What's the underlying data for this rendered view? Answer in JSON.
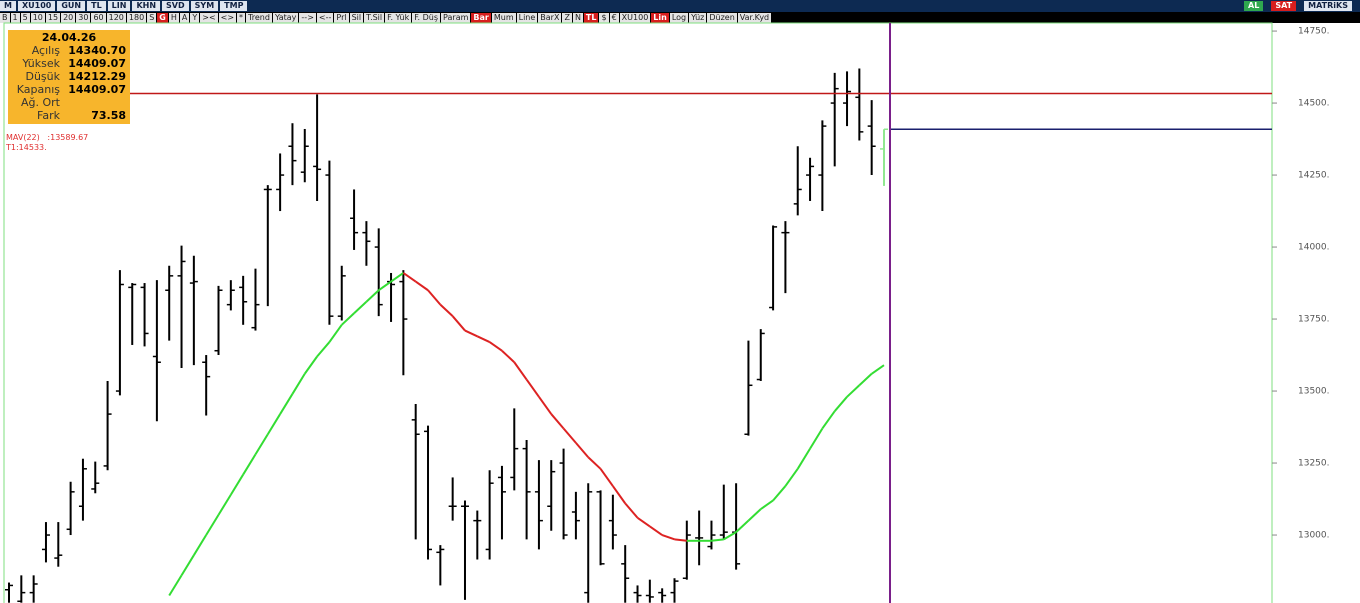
{
  "toolbar": {
    "row1_left": [
      "M",
      "XU100",
      "GUN",
      "TL",
      "LIN",
      "KHN",
      "SVD",
      "SYM",
      "TMP"
    ],
    "row1_right": [
      "AL",
      "SAT",
      "MATRiKS"
    ],
    "row2": [
      "B",
      "1",
      "5",
      "10",
      "15",
      "20",
      "30",
      "60",
      "120",
      "180",
      "S",
      "G",
      "H",
      "A",
      "Y",
      "><",
      "<>",
      "*",
      "Trend",
      "Yatay",
      "-->",
      "<--",
      "Prl",
      "Sil",
      "T.Sil",
      "F. Yük",
      "F. Düş",
      "Param",
      "Bar",
      "Mum",
      "Line",
      "BarX",
      "Z",
      "N",
      "TL",
      "$",
      "€",
      "XU100",
      "Lin",
      "Log",
      "Yüz",
      "Düzen",
      "Var.Kyd"
    ],
    "highlighted": [
      "G",
      "Bar",
      "TL",
      "Lin"
    ]
  },
  "info_box": {
    "date": "24.04.26",
    "rows": [
      [
        "Açılış",
        "14340.70"
      ],
      [
        "Yüksek",
        "14409.07"
      ],
      [
        "Düşük",
        "14212.29"
      ],
      [
        "Kapanış",
        "14409.07"
      ],
      [
        "Ağ. Ort"
      ],
      [
        "Fark",
        "73.58"
      ]
    ]
  },
  "chart_data": {
    "type": "ohlc",
    "ylim": [
      12764,
      14778
    ],
    "yticks": [
      {
        "value": 13000,
        "label": "13000."
      },
      {
        "value": 13250,
        "label": "13250."
      },
      {
        "value": 13500,
        "label": "13500."
      },
      {
        "value": 13750,
        "label": "13750."
      },
      {
        "value": 14000,
        "label": "14000."
      },
      {
        "value": 14250,
        "label": "14250."
      },
      {
        "value": 14500,
        "label": "14500."
      },
      {
        "value": 14750,
        "label": "14750."
      }
    ],
    "color": "#000000",
    "last_color": "#90e890",
    "open": [
      12810,
      12770,
      12800,
      12950,
      12920,
      13020,
      13100,
      13160,
      13240,
      13500,
      13860,
      13860,
      13620,
      13850,
      13900,
      13875,
      13600,
      13640,
      13800,
      13860,
      13720,
      14200,
      14200,
      14350,
      14260,
      14280,
      14250,
      13760,
      14100,
      14050,
      14000,
      13880,
      13880,
      13400,
      13360,
      12940,
      13100,
      13100,
      13050,
      12950,
      13200,
      13200,
      13300,
      13150,
      13100,
      13250,
      13080,
      12800,
      13150,
      13050,
      12900,
      12800,
      12790,
      12800,
      12800,
      12850,
      12990,
      12960,
      13000,
      13010,
      13350,
      13540,
      13790,
      14050,
      14150,
      14250,
      14250,
      14500,
      14500,
      14520,
      14420,
      14340.7
    ],
    "high": [
      12835,
      12860,
      12860,
      13045,
      13045,
      13185,
      13265,
      13255,
      13535,
      13920,
      13875,
      13875,
      13885,
      13935,
      14005,
      13970,
      13625,
      13865,
      13885,
      13900,
      13925,
      14215,
      14325,
      14430,
      14410,
      14530,
      14300,
      13935,
      14200,
      14090,
      14065,
      13910,
      13920,
      13455,
      13380,
      12965,
      13200,
      13120,
      13085,
      13225,
      13240,
      13440,
      13330,
      13260,
      13260,
      13300,
      13150,
      13180,
      13155,
      13140,
      12965,
      12825,
      12845,
      12815,
      12850,
      13050,
      13085,
      13050,
      13175,
      13180,
      13675,
      13715,
      14075,
      14090,
      14350,
      14310,
      14440,
      14605,
      14610,
      14620,
      14510,
      14409.07
    ],
    "low": [
      12765,
      12765,
      12765,
      12905,
      12890,
      13000,
      13050,
      13145,
      13225,
      13485,
      13660,
      13655,
      13395,
      13675,
      13580,
      13590,
      13415,
      13625,
      13780,
      13730,
      13710,
      13795,
      14125,
      14215,
      14225,
      14160,
      13730,
      13745,
      13990,
      13935,
      13760,
      13740,
      13555,
      12985,
      12915,
      12825,
      13050,
      12775,
      12915,
      12915,
      12985,
      13155,
      12985,
      12950,
      13015,
      12985,
      12985,
      12765,
      12895,
      12950,
      12765,
      12765,
      12765,
      12765,
      12765,
      12845,
      12895,
      12950,
      12985,
      12880,
      13345,
      13535,
      13780,
      13840,
      14110,
      14160,
      14125,
      14280,
      14420,
      14370,
      14250,
      14212.29
    ],
    "close": [
      12825,
      12800,
      12830,
      13000,
      12930,
      13150,
      13230,
      13180,
      13420,
      13870,
      13870,
      13700,
      13600,
      13900,
      13950,
      13880,
      13550,
      13850,
      13850,
      13810,
      13800,
      14200,
      14250,
      14300,
      14350,
      14270,
      13760,
      13900,
      14050,
      14020,
      13800,
      13870,
      13750,
      13350,
      12950,
      12950,
      13100,
      13100,
      13050,
      13180,
      13150,
      13300,
      13150,
      13050,
      13220,
      13000,
      13050,
      13150,
      12900,
      13000,
      12850,
      12790,
      12785,
      12790,
      12840,
      13000,
      12990,
      13000,
      13010,
      12900,
      13520,
      13700,
      14070,
      14050,
      14200,
      14280,
      14420,
      14550,
      14540,
      14400,
      14350,
      14409.07
    ],
    "ma": {
      "name": "MAV(22)",
      "value_label": ":13589.67",
      "up_color": "#33dd33",
      "down_color": "#dd2222",
      "values": [
        null,
        null,
        null,
        null,
        null,
        null,
        null,
        null,
        null,
        null,
        null,
        null,
        null,
        12790,
        12860,
        12930,
        13000,
        13070,
        13140,
        13210,
        13280,
        13350,
        13420,
        13490,
        13560,
        13620,
        13670,
        13730,
        13770,
        13810,
        13850,
        13880,
        13910,
        13880,
        13850,
        13800,
        13760,
        13710,
        13690,
        13670,
        13640,
        13600,
        13540,
        13480,
        13420,
        13370,
        13320,
        13270,
        13230,
        13170,
        13110,
        13060,
        13030,
        13000,
        12985,
        12980,
        12980,
        12980,
        12985,
        13010,
        13050,
        13090,
        13120,
        13170,
        13230,
        13300,
        13370,
        13430,
        13480,
        13520,
        13560,
        13589.67
      ]
    },
    "hline": {
      "value": 14533,
      "label": "T1:14533.",
      "color": "#c01818"
    },
    "last_line_color": "#1a1f6e",
    "cursor_color": "#7a1f8a",
    "frame_color": "#7fdf7f"
  }
}
